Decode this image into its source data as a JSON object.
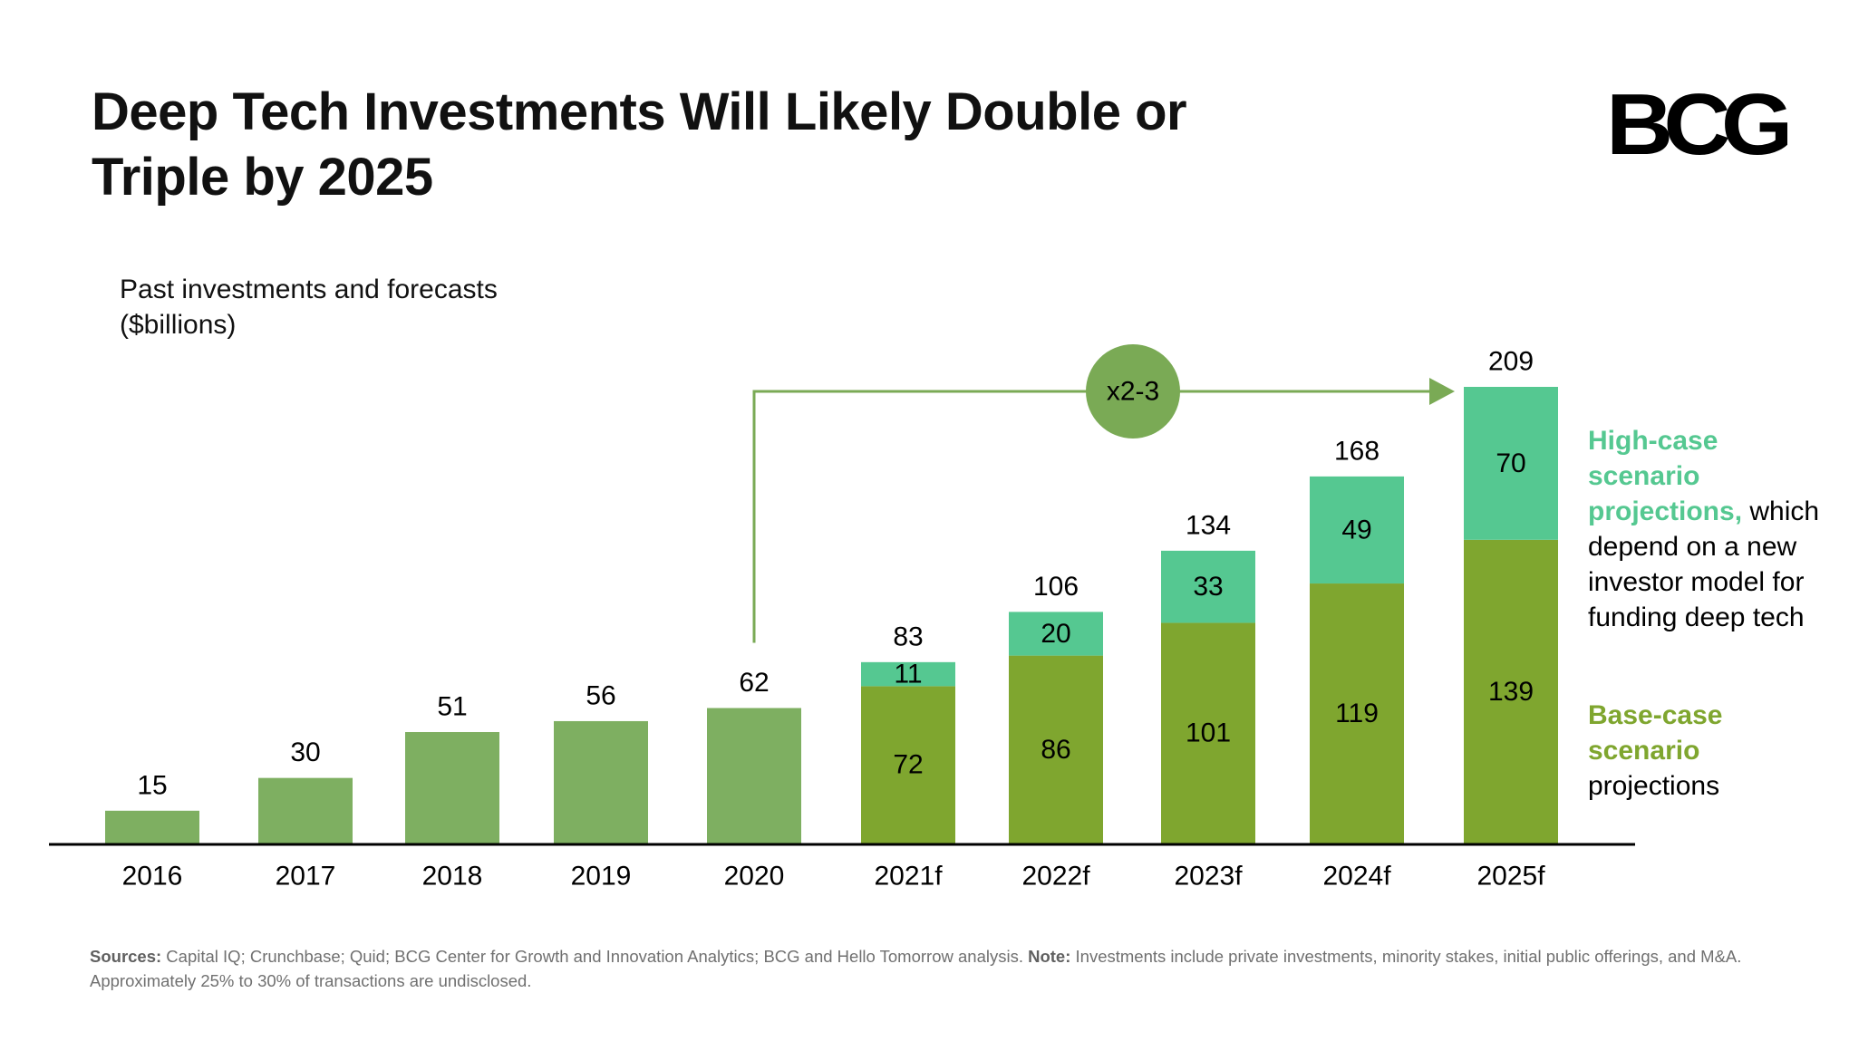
{
  "title": "Deep Tech Investments Will Likely Double or Triple by 2025",
  "logo_text": "BCG",
  "subtitle": "Past investments and forecasts ($billions)",
  "colors": {
    "past": "#7EAF61",
    "base": "#7FA62F",
    "high": "#55C891",
    "arrow": "#7AAA55",
    "baseline": "#000000",
    "legend_high": "#55C891",
    "legend_base": "#7FA62F"
  },
  "chart_data": {
    "type": "bar",
    "stacked": true,
    "title": "Deep Tech Investments Will Likely Double or Triple by 2025",
    "ylabel": "Past investments and forecasts ($billions)",
    "xlabel": "",
    "categories": [
      "2016",
      "2017",
      "2018",
      "2019",
      "2020",
      "2021f",
      "2022f",
      "2023f",
      "2024f",
      "2025f"
    ],
    "ylim": [
      0,
      209
    ],
    "series": [
      {
        "name": "Past investments",
        "values": [
          15,
          30,
          51,
          56,
          62,
          null,
          null,
          null,
          null,
          null
        ]
      },
      {
        "name": "Base-case scenario projections",
        "values": [
          null,
          null,
          null,
          null,
          null,
          72,
          86,
          101,
          119,
          139
        ]
      },
      {
        "name": "High-case scenario projections",
        "values": [
          null,
          null,
          null,
          null,
          null,
          11,
          20,
          33,
          49,
          70
        ]
      }
    ],
    "totals": [
      15,
      30,
      51,
      56,
      62,
      83,
      106,
      134,
      168,
      209
    ],
    "annotation": {
      "label": "x2-3",
      "from": "2020",
      "to": "2025f"
    },
    "grid": false,
    "legend_position": "right"
  },
  "legend": {
    "high_highlight": "High-case scenario projections,",
    "high_text": " which depend on a new investor model for funding deep tech",
    "base_highlight": "Base-case scenario",
    "base_text": " projections"
  },
  "footnote": {
    "sources_label": "Sources:",
    "sources_text": " Capital IQ; Crunchbase; Quid; BCG Center for Growth and Innovation Analytics; BCG and Hello Tomorrow analysis. ",
    "note_label": "Note:",
    "note_text": " Investments include private investments, minority stakes, initial public offerings, and M&A. Approximately 25% to 30% of transactions are undisclosed."
  }
}
